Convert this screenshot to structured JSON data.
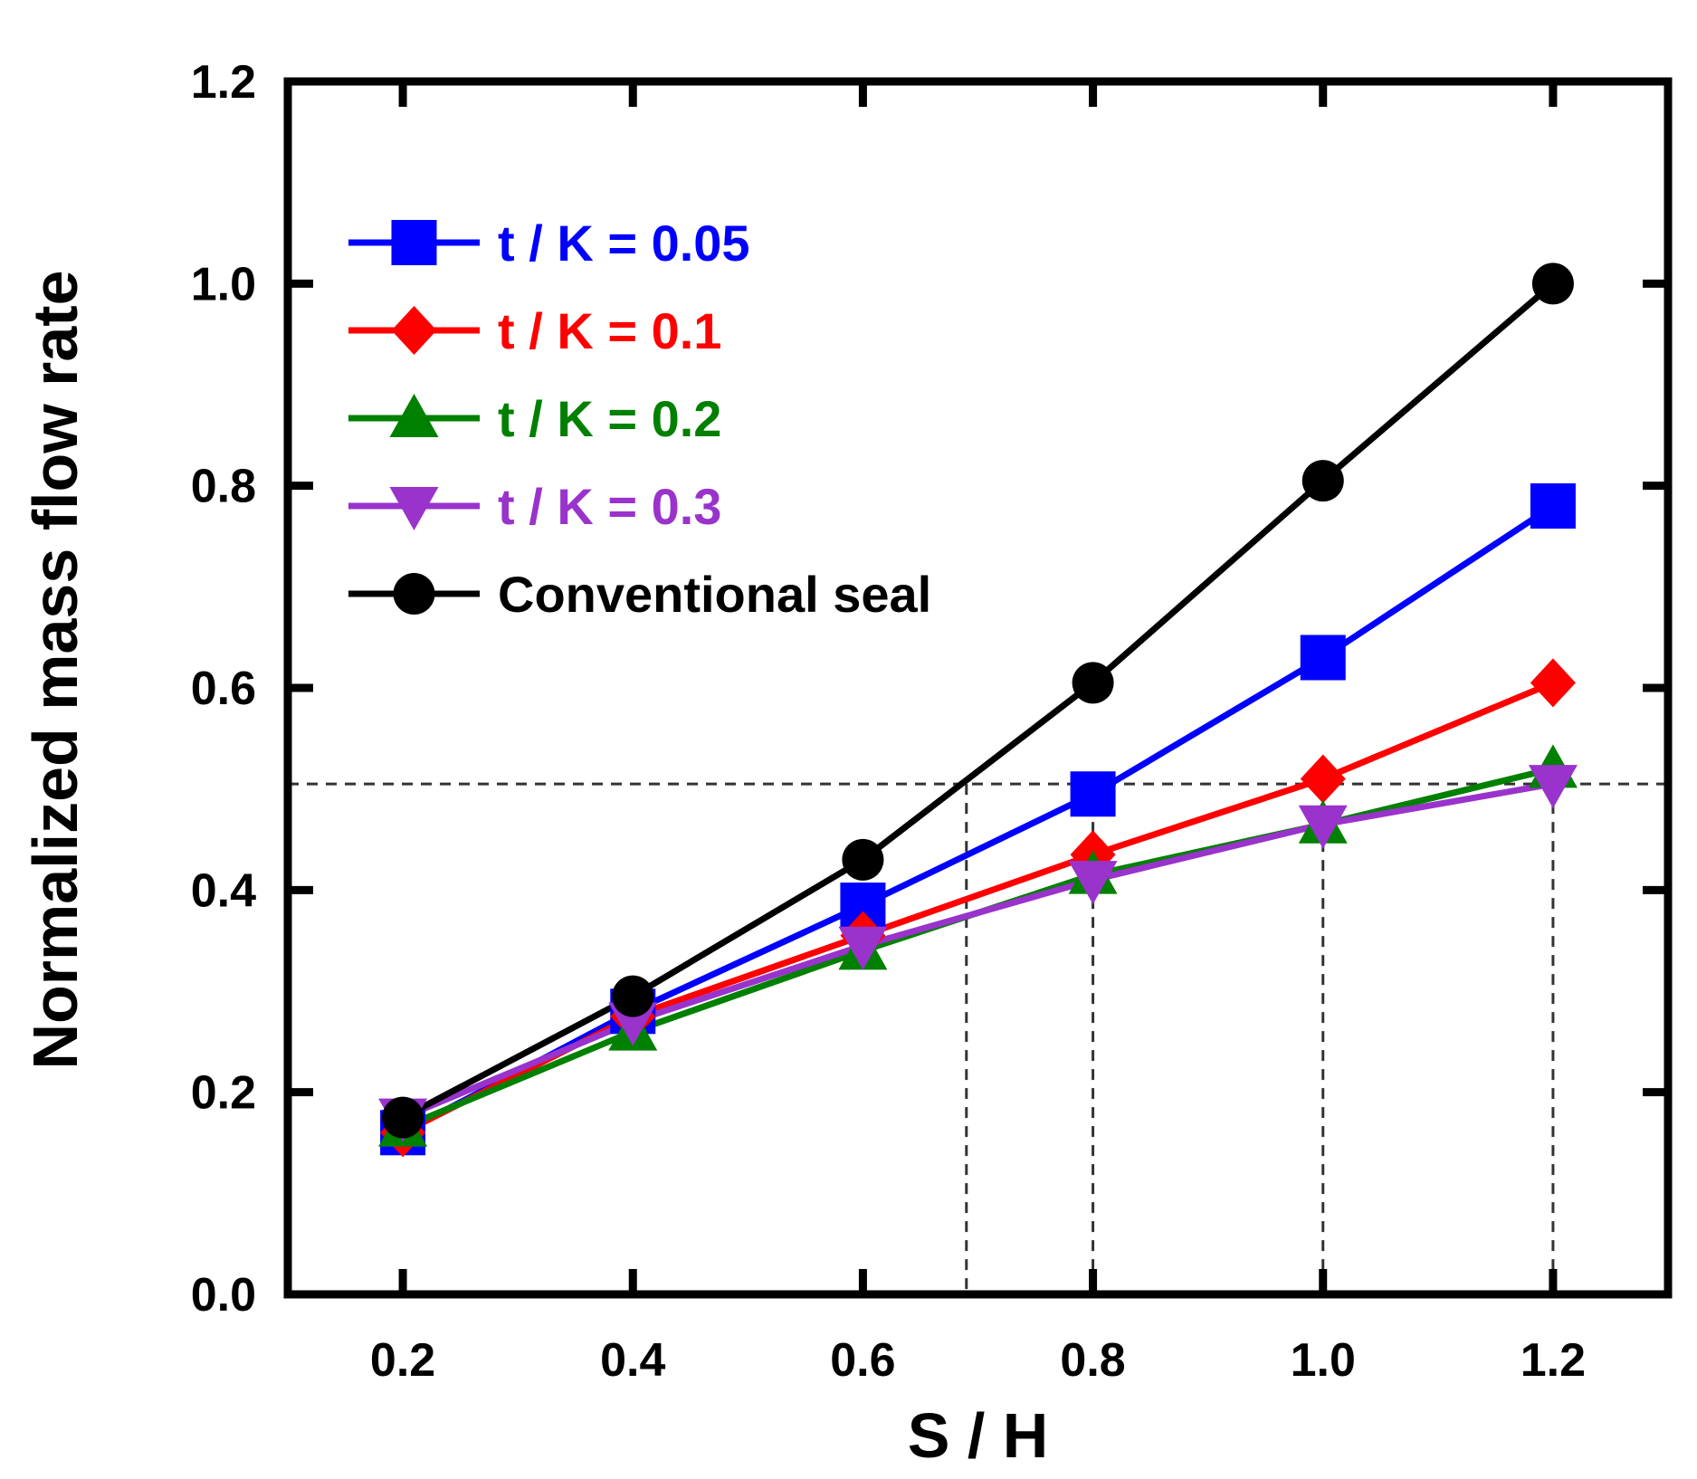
{
  "chart_data": {
    "type": "line",
    "title": "",
    "xlabel": "S / H",
    "ylabel": "Normalized mass flow rate",
    "xlim": [
      0.1,
      1.3
    ],
    "ylim": [
      0.0,
      1.2
    ],
    "x_ticks": [
      "0.2",
      "0.4",
      "0.6",
      "0.8",
      "1.0",
      "1.2"
    ],
    "y_ticks": [
      "0.0",
      "0.2",
      "0.4",
      "0.6",
      "0.8",
      "1.0",
      "1.2"
    ],
    "legend_position": "top-left",
    "x": [
      0.2,
      0.4,
      0.6,
      0.8,
      1.0,
      1.2
    ],
    "series": [
      {
        "name": "t / K = 0.05",
        "color": "#0000ff",
        "marker": "square",
        "values": [
          0.16,
          0.28,
          0.385,
          0.495,
          0.63,
          0.78
        ]
      },
      {
        "name": "t / K = 0.1",
        "color": "#ff0000",
        "marker": "diamond",
        "values": [
          0.16,
          0.275,
          0.355,
          0.435,
          0.51,
          0.605
        ]
      },
      {
        "name": "t / K = 0.2",
        "color": "#008000",
        "marker": "triangle-up",
        "values": [
          0.165,
          0.26,
          0.34,
          0.415,
          0.465,
          0.52
        ]
      },
      {
        "name": "t / K = 0.3",
        "color": "#9933cc",
        "marker": "triangle-down",
        "values": [
          0.175,
          0.27,
          0.345,
          0.41,
          0.465,
          0.505
        ]
      },
      {
        "name": "Conventional seal",
        "color": "#000000",
        "marker": "circle",
        "values": [
          0.175,
          0.295,
          0.43,
          0.605,
          0.805,
          1.0
        ]
      }
    ],
    "reference_lines": {
      "horizontal_y": 0.505,
      "vertical_x": [
        0.69,
        0.8,
        1.0,
        1.2
      ]
    }
  }
}
